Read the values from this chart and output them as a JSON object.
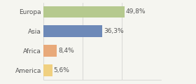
{
  "categories": [
    "Europa",
    "Asia",
    "Africa",
    "America"
  ],
  "values": [
    49.8,
    36.3,
    8.4,
    5.6
  ],
  "bar_colors": [
    "#b5c98e",
    "#6d89b8",
    "#e8a97a",
    "#f0d080"
  ],
  "labels": [
    "49,8%",
    "36,3%",
    "8,4%",
    "5,6%"
  ],
  "background_color": "#f5f5f0",
  "xlim": [
    0,
    72
  ],
  "bar_height": 0.6,
  "label_fontsize": 6.5,
  "tick_fontsize": 6.5,
  "grid_ticks": [
    0,
    24,
    48,
    72
  ]
}
